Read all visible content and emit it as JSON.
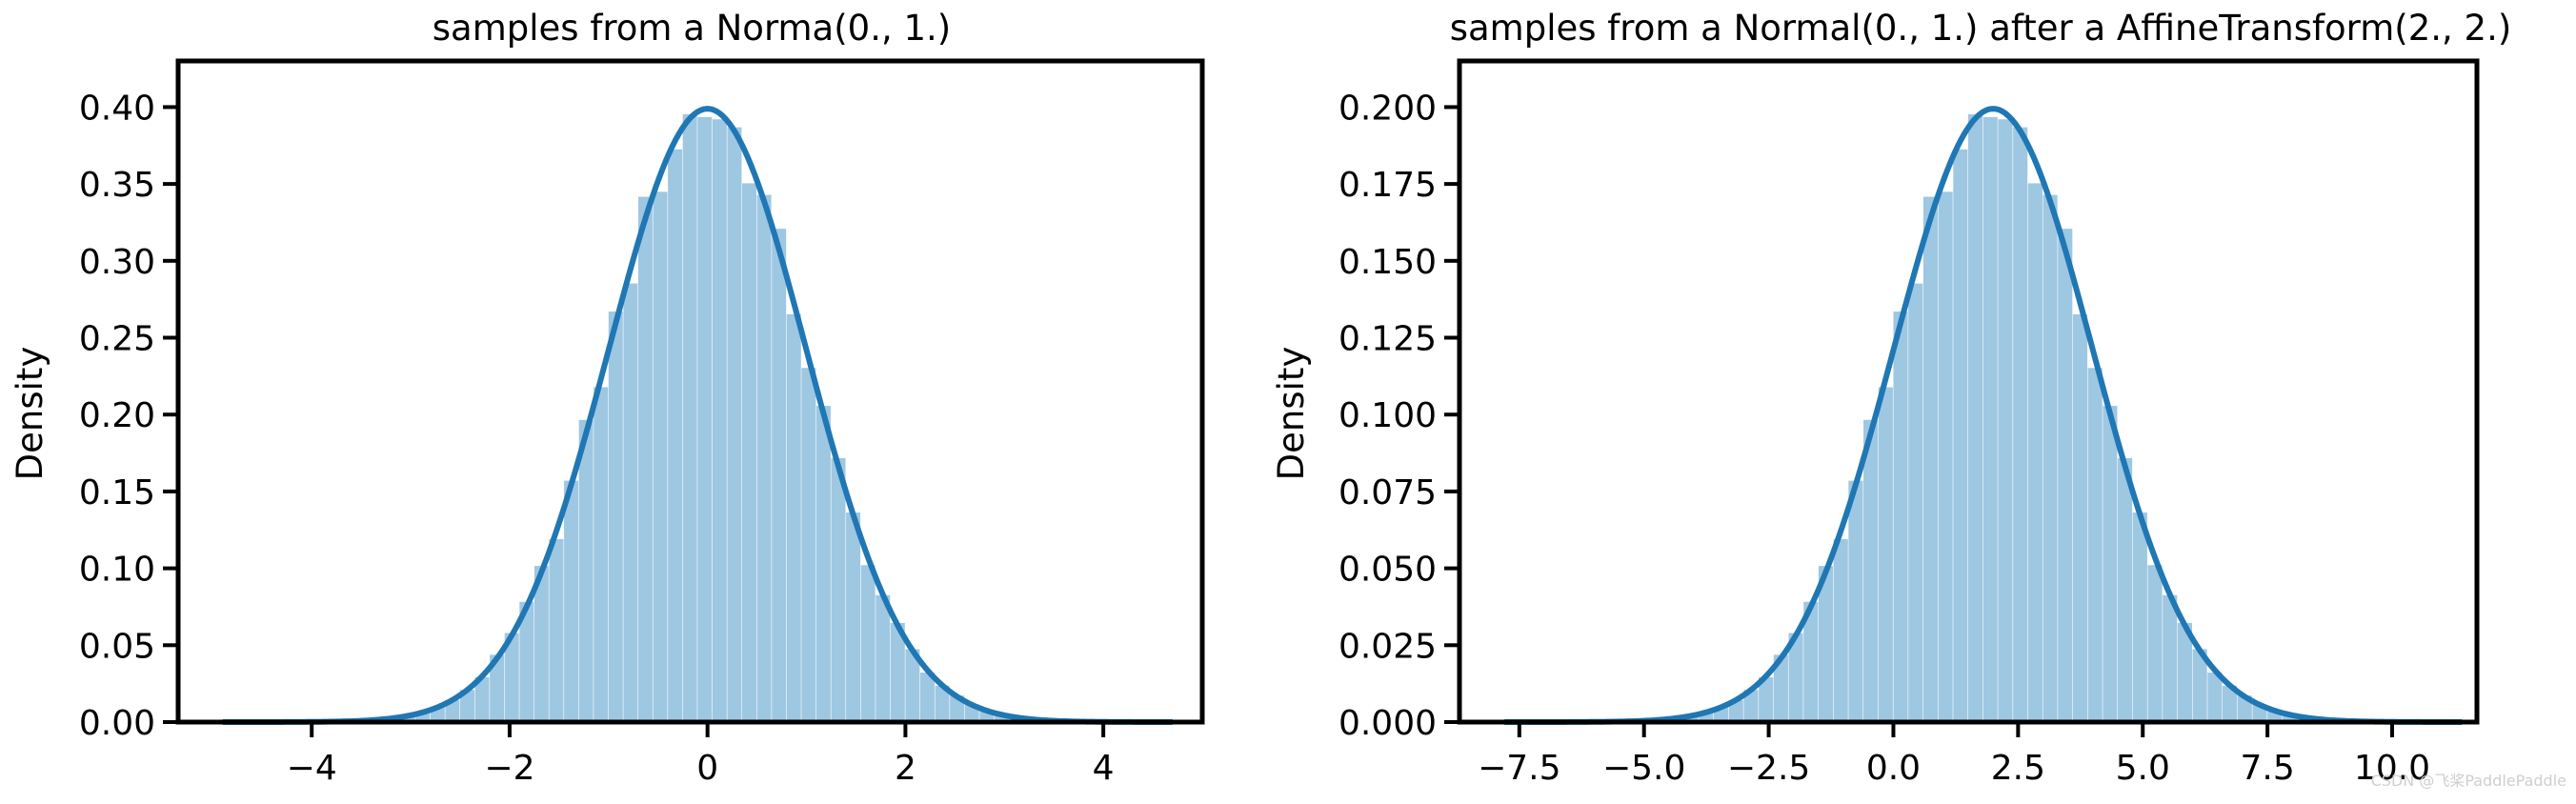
{
  "chart_data": [
    {
      "type": "bar",
      "title": "samples from a Norma(0., 1.)",
      "xlabel": "",
      "ylabel": "Density",
      "xlim": [
        -5.35,
        5.0
      ],
      "ylim": [
        0,
        0.43
      ],
      "xticks": [
        -4,
        -2,
        0,
        2,
        4
      ],
      "xtick_labels": [
        "−4",
        "−2",
        "0",
        "2",
        "4"
      ],
      "yticks": [
        0,
        0.05,
        0.1,
        0.15,
        0.2,
        0.25,
        0.3,
        0.35,
        0.4
      ],
      "ytick_labels": [
        "0.00",
        "0.05",
        "0.10",
        "0.15",
        "0.20",
        "0.25",
        "0.30",
        "0.35",
        "0.40"
      ],
      "hist_range": [
        -4.9,
        4.7
      ],
      "bin_width": 0.15,
      "kde": {
        "loc": 0.0,
        "scale": 1.0
      },
      "bar_color": "#9ec7e2",
      "line_color": "#1f77b4"
    },
    {
      "type": "bar",
      "title": "samples from a Normal(0., 1.) after a AffineTransform(2., 2.)",
      "xlabel": "",
      "ylabel": "Density",
      "xlim": [
        -8.7,
        11.7
      ],
      "ylim": [
        0,
        0.215
      ],
      "xticks": [
        -7.5,
        -5.0,
        -2.5,
        0.0,
        2.5,
        5.0,
        7.5,
        10.0
      ],
      "xtick_labels": [
        "−7.5",
        "−5.0",
        "−2.5",
        "0.0",
        "2.5",
        "5.0",
        "7.5",
        "10.0"
      ],
      "yticks": [
        0,
        0.025,
        0.05,
        0.075,
        0.1,
        0.125,
        0.15,
        0.175,
        0.2
      ],
      "ytick_labels": [
        "0.000",
        "0.025",
        "0.050",
        "0.075",
        "0.100",
        "0.125",
        "0.150",
        "0.175",
        "0.200"
      ],
      "hist_range": [
        -7.8,
        11.4
      ],
      "bin_width": 0.3,
      "kde": {
        "loc": 2.0,
        "scale": 2.0
      },
      "bar_color": "#9ec7e2",
      "line_color": "#1f77b4"
    }
  ],
  "watermark": "CSDN @飞桨PaddlePaddle"
}
